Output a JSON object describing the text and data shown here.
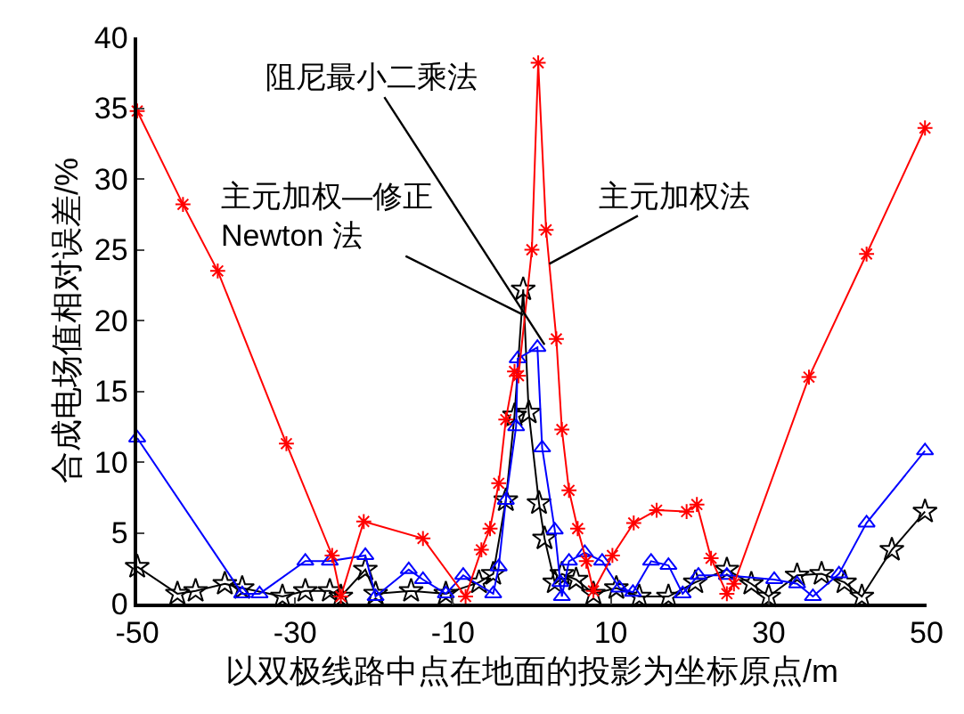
{
  "chart_data": {
    "type": "line",
    "xlabel": "以双极线路中点在地面的投影为坐标原点/m",
    "ylabel": "合成电场值相对误差/%",
    "xlim": [
      -50,
      50
    ],
    "xticks": [
      -50,
      -30,
      -10,
      10,
      30,
      50
    ],
    "ylim": [
      0,
      40
    ],
    "yticks": [
      0,
      5,
      10,
      15,
      20,
      25,
      30,
      35,
      40
    ],
    "line_style": "solid",
    "series": [
      {
        "color": "#ff0000",
        "marker": "cross",
        "x": [
          -50,
          -44.2,
          -39.8,
          -31.1,
          -25.3,
          -24.2,
          -21.3,
          -13.8,
          -8.4,
          -6.4,
          -5.3,
          -4.2,
          -3.3,
          -2.2,
          -1.7,
          0,
          0.8,
          1.8,
          3.1,
          3.8,
          4.7,
          5.8,
          6.9,
          7.8,
          10.2,
          12.9,
          15.8,
          19.6,
          20.9,
          22.7,
          24.7,
          25.6,
          35.1,
          42.4,
          49.8
        ],
        "values": [
          34.8,
          28.2,
          23.5,
          11.3,
          3.4,
          0.5,
          5.8,
          4.6,
          0.5,
          3.8,
          5.3,
          8.5,
          13,
          16.4,
          16.1,
          25,
          38.2,
          26.4,
          18.7,
          12.3,
          8,
          5.3,
          3,
          0.9,
          3.4,
          5.7,
          6.6,
          6.5,
          7,
          3.2,
          0.7,
          1.4,
          16,
          24.7,
          33.6
        ]
      },
      {
        "color": "#0000ff",
        "marker": "triangle",
        "x": [
          -50,
          -36.7,
          -34.5,
          -28.7,
          -25.6,
          -21.1,
          -19.8,
          -15.6,
          -13.8,
          -10.9,
          -8.7,
          -4.9,
          -4.2,
          -3.3,
          -2,
          -1.8,
          0.7,
          1.3,
          2.9,
          3.6,
          3.8,
          4.7,
          6.7,
          8.9,
          11.1,
          12.8,
          15.1,
          17.3,
          19.1,
          21.1,
          24.7,
          30.7,
          33.6,
          35.6,
          38.9,
          42.4,
          49.8
        ],
        "values": [
          11.7,
          0.7,
          0.7,
          3,
          3,
          3.4,
          0.5,
          2.4,
          1.7,
          0.7,
          2,
          0.7,
          2.6,
          7.3,
          12.5,
          17.3,
          18.1,
          11,
          5.2,
          1.5,
          0.5,
          3,
          3.6,
          3,
          1.1,
          0.8,
          3,
          2.7,
          0.7,
          2,
          2,
          1.7,
          1.4,
          0.5,
          2.1,
          5.7,
          10.8
        ]
      },
      {
        "color": "#000000",
        "marker": "star",
        "x": [
          -50,
          -44.9,
          -42.6,
          -38.9,
          -36.7,
          -31.6,
          -28.7,
          -25.6,
          -24.2,
          -21.1,
          -19.8,
          -15.3,
          -10.9,
          -6.7,
          -4.9,
          -3.3,
          -2.2,
          -1.1,
          -0.4,
          0.9,
          1.6,
          2.9,
          3.8,
          5.6,
          7.8,
          10.7,
          13.6,
          17.3,
          20.7,
          24.7,
          27.8,
          30,
          33.6,
          36.7,
          39.6,
          41.8,
          45.6,
          49.8
        ],
        "values": [
          2.6,
          0.7,
          0.9,
          1.4,
          1.1,
          0.5,
          0.9,
          0.9,
          0.5,
          2.4,
          0.7,
          0.9,
          0.7,
          1.5,
          2.1,
          7.3,
          13.3,
          22.2,
          13.5,
          7.1,
          4.6,
          1.5,
          2.1,
          1.7,
          0.7,
          1.1,
          0.5,
          0.5,
          1.5,
          2.4,
          1.4,
          0.5,
          2,
          2.1,
          1.5,
          0.5,
          3.8,
          6.5
        ]
      }
    ],
    "annotations": [
      {
        "text": "阻尼最小二乘法",
        "x": 1.6,
        "y": 18.3
      },
      {
        "text": "主元加权—修正\nNewton 法",
        "x": -1.1,
        "y": 20.4
      },
      {
        "text": "主元加权法",
        "x": 2.2,
        "y": 24
      }
    ]
  }
}
